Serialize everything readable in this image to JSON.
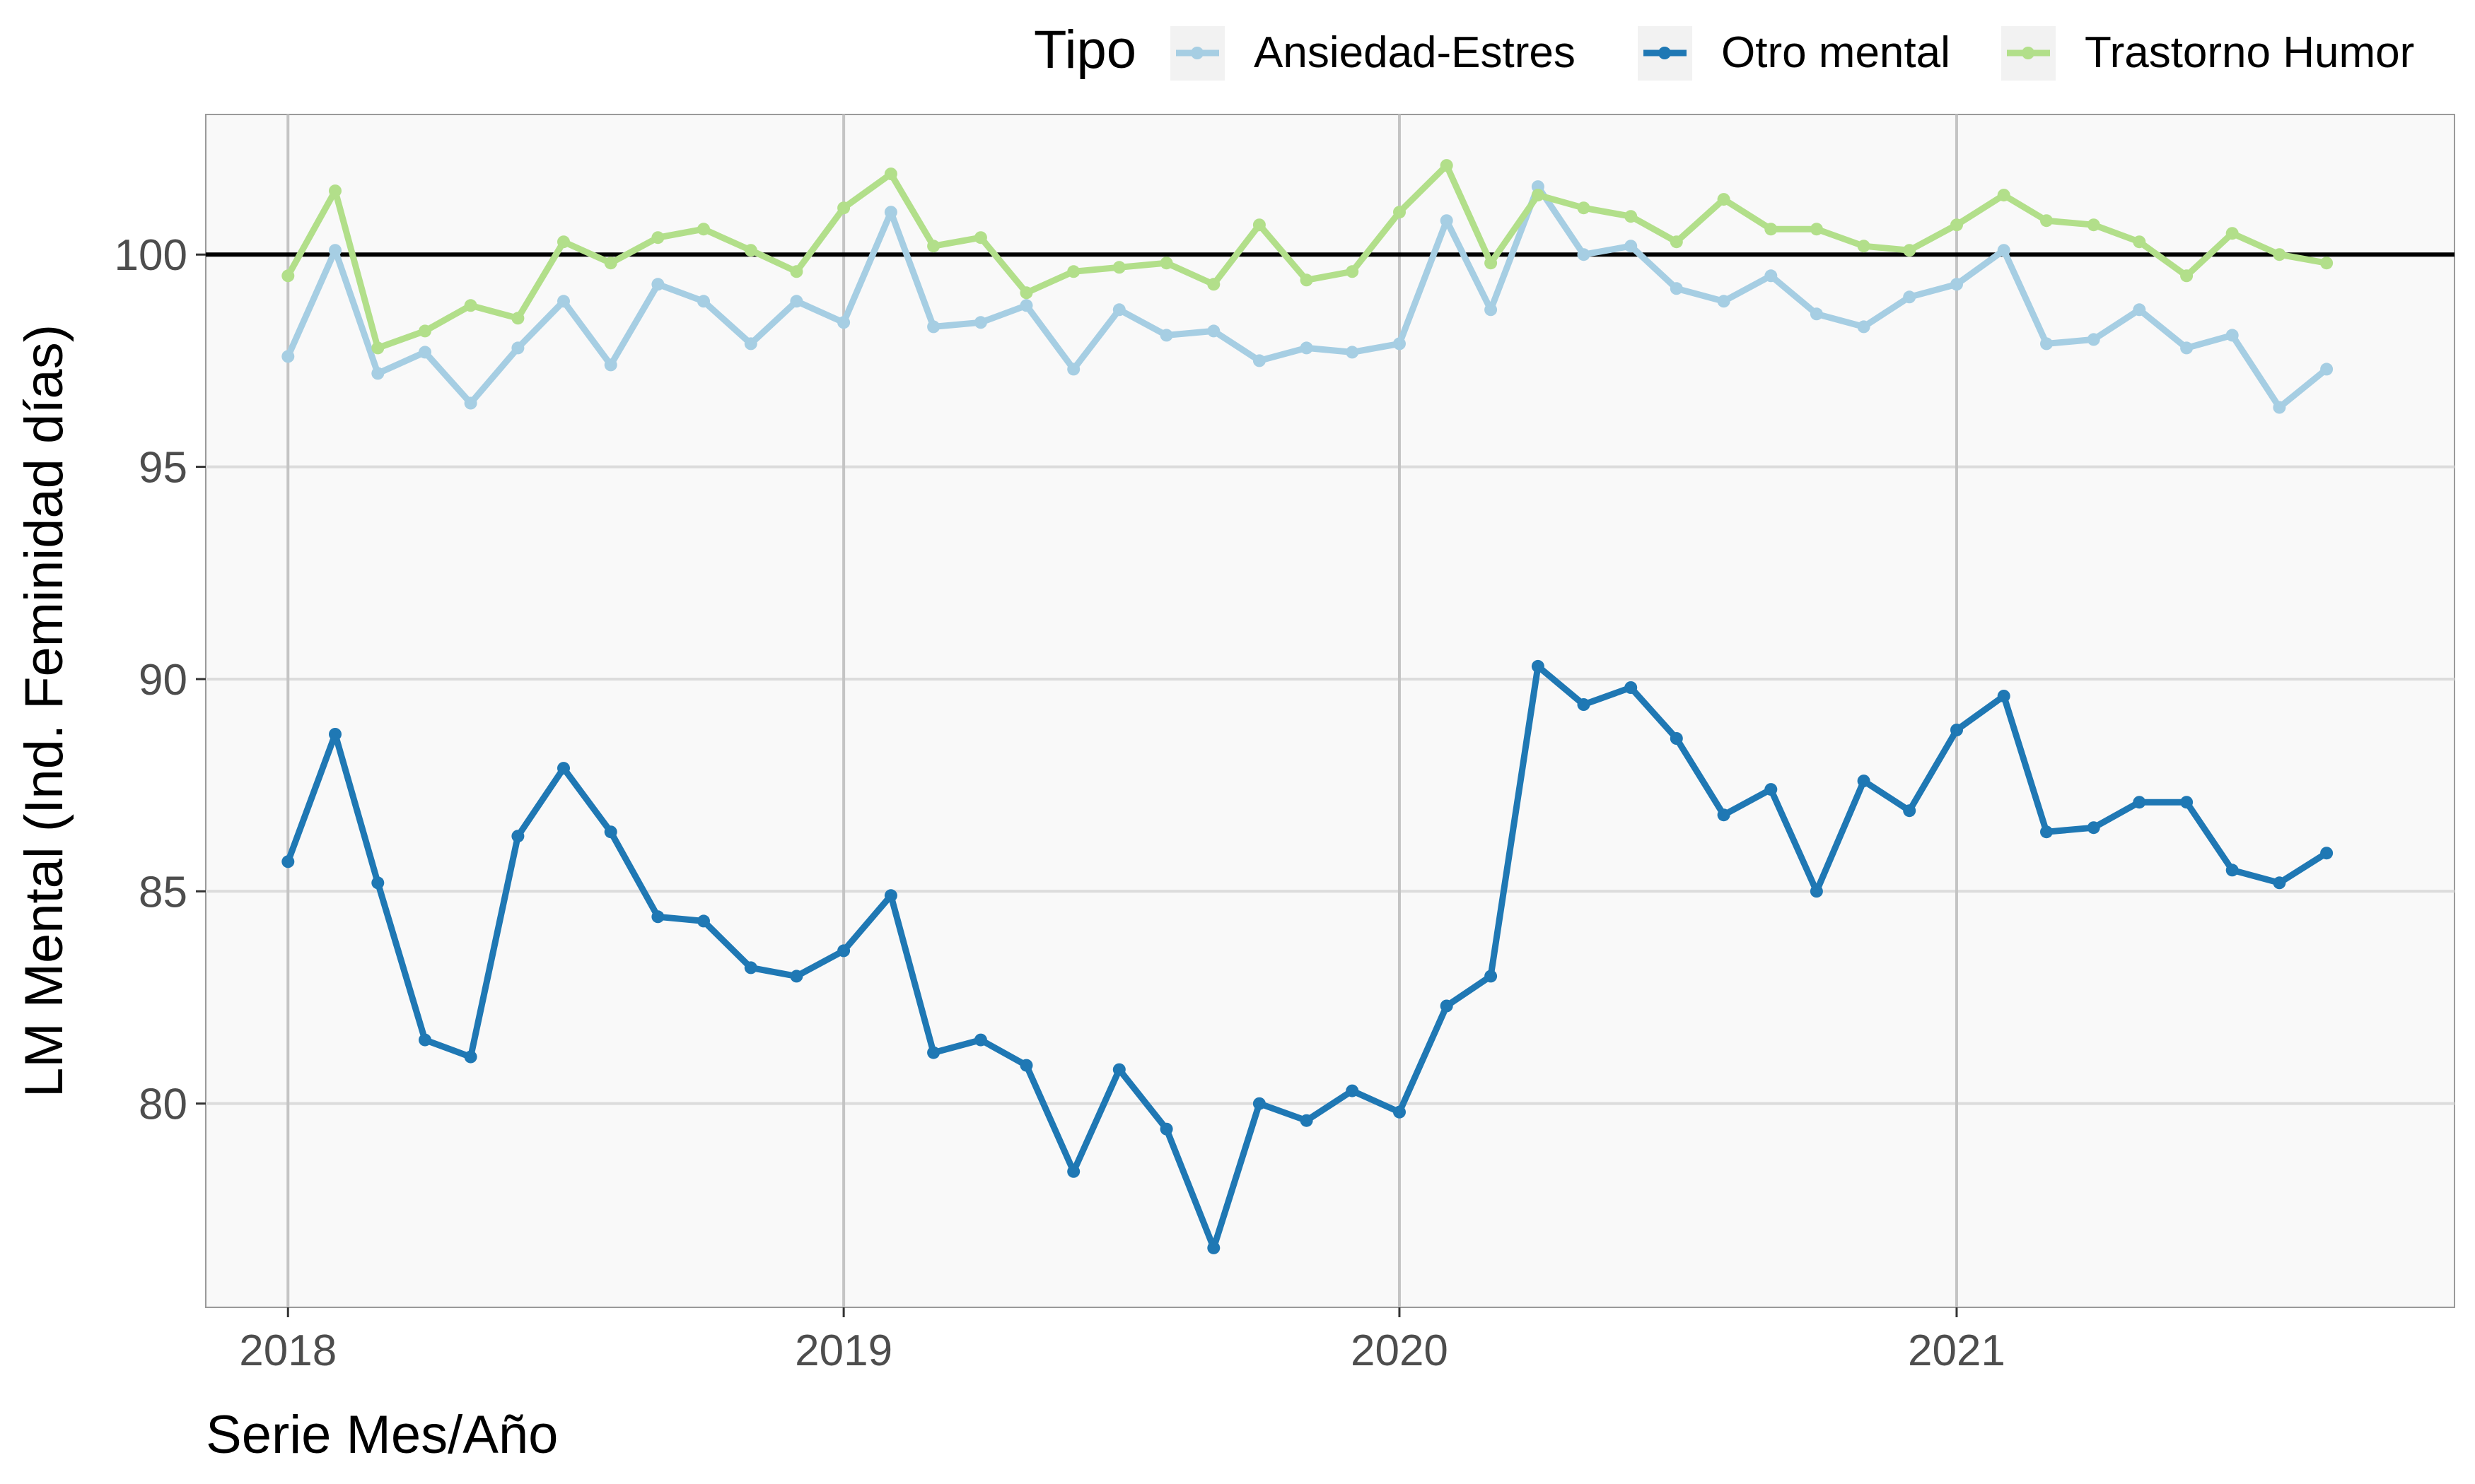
{
  "chart_data": {
    "type": "line",
    "xlabel": "Serie Mes/Año",
    "ylabel": "LM Mental (Ind. Feminidad días)",
    "x_tick_labels": [
      "2018",
      "2019",
      "2020",
      "2021"
    ],
    "y_tick_labels": [
      "80",
      "85",
      "90",
      "95",
      "100"
    ],
    "y_ticks": [
      80,
      85,
      90,
      95,
      100
    ],
    "ylim": [
      75.2,
      103.3
    ],
    "xlim": [
      "2017-11-08",
      "2021-11-24"
    ],
    "reference_line": 100,
    "grid": true,
    "legend": {
      "title": "Tipo",
      "position": "top-right"
    },
    "x": [
      "2018-01",
      "2018-02",
      "2018-03",
      "2018-04",
      "2018-05",
      "2018-06",
      "2018-07",
      "2018-08",
      "2018-09",
      "2018-10",
      "2018-11",
      "2018-12",
      "2019-01",
      "2019-02",
      "2019-03",
      "2019-04",
      "2019-05",
      "2019-06",
      "2019-07",
      "2019-08",
      "2019-09",
      "2019-10",
      "2019-11",
      "2019-12",
      "2020-01",
      "2020-02",
      "2020-03",
      "2020-04",
      "2020-05",
      "2020-06",
      "2020-07",
      "2020-08",
      "2020-09",
      "2020-10",
      "2020-11",
      "2020-12",
      "2021-01",
      "2021-02",
      "2021-03",
      "2021-04",
      "2021-05",
      "2021-06",
      "2021-07",
      "2021-08",
      "2021-09"
    ],
    "series": [
      {
        "name": "Ansiedad-Estres",
        "color": "#a6cee3",
        "values": [
          97.6,
          100.1,
          97.2,
          97.7,
          96.5,
          97.8,
          98.9,
          97.4,
          99.3,
          98.9,
          97.9,
          98.9,
          98.4,
          101.0,
          98.3,
          98.4,
          98.8,
          97.3,
          98.7,
          98.1,
          98.2,
          97.5,
          97.8,
          97.7,
          97.9,
          100.8,
          98.7,
          101.6,
          100.0,
          100.2,
          99.2,
          98.9,
          99.5,
          98.6,
          98.3,
          99.0,
          99.3,
          100.1,
          97.9,
          98.0,
          98.7,
          97.8,
          98.1,
          96.4,
          97.3
        ]
      },
      {
        "name": "Otro mental",
        "color": "#1f78b4",
        "values": [
          85.7,
          88.7,
          85.2,
          81.5,
          81.1,
          86.3,
          87.9,
          86.4,
          84.4,
          84.3,
          83.2,
          83.0,
          83.6,
          84.9,
          81.2,
          81.5,
          80.9,
          78.4,
          80.8,
          79.4,
          76.6,
          80.0,
          79.6,
          80.3,
          79.8,
          82.3,
          83.0,
          90.3,
          89.4,
          89.8,
          88.6,
          86.8,
          87.4,
          85.0,
          87.6,
          86.9,
          88.8,
          89.6,
          86.4,
          86.5,
          87.1,
          87.1,
          85.5,
          85.2,
          85.9
        ]
      },
      {
        "name": "Trastorno Humor",
        "color": "#b2df8a",
        "values": [
          99.5,
          101.5,
          97.8,
          98.2,
          98.8,
          98.5,
          100.3,
          99.8,
          100.4,
          100.6,
          100.1,
          99.6,
          101.1,
          101.9,
          100.2,
          100.4,
          99.1,
          99.6,
          99.7,
          99.8,
          99.3,
          100.7,
          99.4,
          99.6,
          101.0,
          102.1,
          99.8,
          101.4,
          101.1,
          100.9,
          100.3,
          101.3,
          100.6,
          100.6,
          100.2,
          100.1,
          100.7,
          101.4,
          100.8,
          100.7,
          100.3,
          99.5,
          100.5,
          100.0,
          99.8
        ]
      }
    ]
  }
}
